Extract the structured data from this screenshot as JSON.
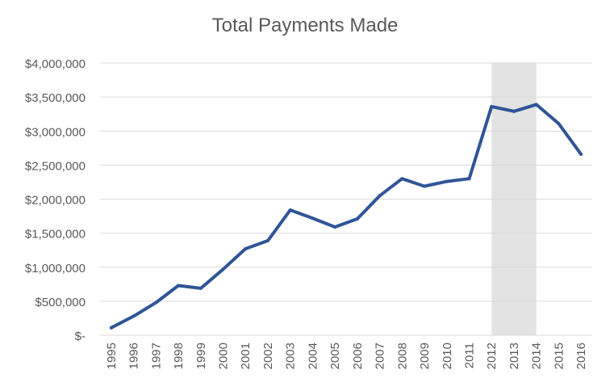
{
  "chart_data": {
    "type": "line",
    "title": "Total Payments Made",
    "xlabel": "",
    "ylabel": "",
    "ylim": [
      0,
      4000000
    ],
    "grid": true,
    "legend": "none",
    "y_ticks": [
      {
        "value": 0,
        "label": "$-"
      },
      {
        "value": 500000,
        "label": "$500,000"
      },
      {
        "value": 1000000,
        "label": "$1,000,000"
      },
      {
        "value": 1500000,
        "label": "$1,500,000"
      },
      {
        "value": 2000000,
        "label": "$2,000,000"
      },
      {
        "value": 2500000,
        "label": "$2,500,000"
      },
      {
        "value": 3000000,
        "label": "$3,000,000"
      },
      {
        "value": 3500000,
        "label": "$3,500,000"
      },
      {
        "value": 4000000,
        "label": "$4,000,000"
      }
    ],
    "categories": [
      "1995",
      "1996",
      "1997",
      "1998",
      "1999",
      "2000",
      "2001",
      "2002",
      "2003",
      "2004",
      "2005",
      "2006",
      "2007",
      "2008",
      "2009",
      "2010",
      "2011",
      "2012",
      "2013",
      "2014",
      "2015",
      "2016"
    ],
    "values": [
      110000,
      280000,
      480000,
      730000,
      690000,
      970000,
      1270000,
      1390000,
      1840000,
      1720000,
      1590000,
      1710000,
      2050000,
      2300000,
      2190000,
      2260000,
      2300000,
      3360000,
      3290000,
      3390000,
      3110000,
      2660000
    ],
    "highlight": {
      "start": "2012",
      "end": "2014"
    },
    "colors": {
      "line": "#2F5597",
      "highlight": "#E3E3E3",
      "grid": "#D9D9D9",
      "text": "#595959"
    }
  }
}
